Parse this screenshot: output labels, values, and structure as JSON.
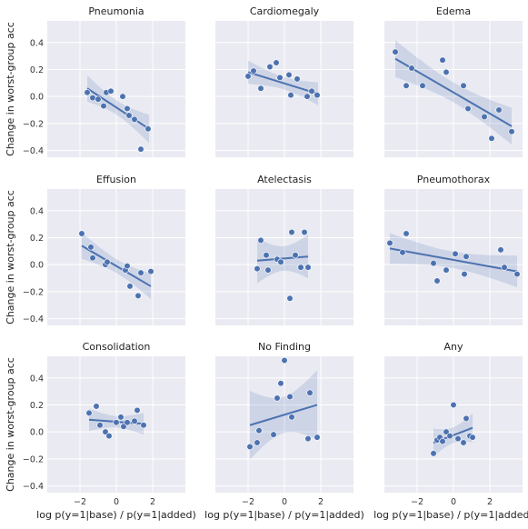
{
  "chart_data": {
    "type": "scatter",
    "xlim": [
      -3.8,
      3.8
    ],
    "ylim": [
      -0.45,
      0.56
    ],
    "xticks": [
      -2,
      0,
      2
    ],
    "yticks": [
      -0.4,
      -0.2,
      0.0,
      0.2,
      0.4
    ],
    "xtick_labels": [
      "−2",
      "0",
      "2"
    ],
    "ytick_labels": [
      "−0.4",
      "−0.2",
      "0.0",
      "0.2",
      "0.4"
    ],
    "xlabel": "log p(y=1|base) / p(y=1|added)",
    "ylabel": "Change in worst-group acc",
    "point_color": "#4c72b0",
    "line_color": "#4c72b0",
    "band_color": "#4c72b0",
    "panel_bg": "#eaeaf2",
    "grid_color": "#ffffff",
    "panels": [
      {
        "title": "Pneumonia",
        "x": [
          -1.6,
          -1.3,
          -1.0,
          -0.7,
          -0.55,
          -0.3,
          0.35,
          0.6,
          0.7,
          1.0,
          1.35,
          1.75
        ],
        "y": [
          0.03,
          -0.01,
          -0.02,
          -0.07,
          0.03,
          0.04,
          0.0,
          -0.09,
          -0.14,
          -0.17,
          -0.39,
          -0.24
        ],
        "fit": [
          [
            -1.6,
            0.06
          ],
          [
            1.8,
            -0.24
          ]
        ]
      },
      {
        "title": "Cardiomegaly",
        "x": [
          -2.0,
          -1.7,
          -1.3,
          -0.8,
          -0.45,
          -0.25,
          0.25,
          0.35,
          0.7,
          1.25,
          1.5,
          1.8
        ],
        "y": [
          0.15,
          0.19,
          0.06,
          0.22,
          0.25,
          0.14,
          0.16,
          0.01,
          0.13,
          0.0,
          0.04,
          0.01
        ],
        "fit": [
          [
            -2.0,
            0.18
          ],
          [
            1.85,
            0.02
          ]
        ]
      },
      {
        "title": "Edema",
        "x": [
          -3.2,
          -2.6,
          -2.3,
          -1.7,
          -0.6,
          -0.4,
          0.55,
          0.8,
          1.7,
          2.1,
          2.5,
          3.2
        ],
        "y": [
          0.33,
          0.08,
          0.21,
          0.08,
          0.27,
          0.18,
          0.08,
          -0.09,
          -0.15,
          -0.31,
          -0.1,
          -0.26
        ],
        "fit": [
          [
            -3.2,
            0.28
          ],
          [
            3.2,
            -0.22
          ]
        ]
      },
      {
        "title": "Effusion",
        "x": [
          -1.9,
          -1.4,
          -1.3,
          -0.6,
          -0.5,
          0.5,
          0.6,
          0.75,
          1.2,
          1.35,
          1.9
        ],
        "y": [
          0.23,
          0.13,
          0.05,
          0.0,
          0.02,
          -0.04,
          -0.01,
          -0.16,
          -0.23,
          -0.06,
          -0.05
        ],
        "fit": [
          [
            -1.9,
            0.14
          ],
          [
            1.9,
            -0.16
          ]
        ]
      },
      {
        "title": "Atelectasis",
        "x": [
          -1.5,
          -1.3,
          -1.0,
          -0.9,
          -0.4,
          -0.2,
          0.3,
          0.4,
          0.6,
          0.9,
          1.1,
          1.3
        ],
        "y": [
          -0.03,
          0.18,
          0.07,
          -0.04,
          0.04,
          0.02,
          -0.25,
          0.24,
          0.07,
          -0.02,
          0.24,
          -0.02
        ],
        "fit": [
          [
            -1.5,
            0.03
          ],
          [
            1.3,
            0.06
          ]
        ]
      },
      {
        "title": "Pneumothorax",
        "x": [
          -3.5,
          -2.8,
          -2.6,
          -1.1,
          -0.9,
          -0.4,
          0.1,
          0.6,
          0.7,
          2.6,
          2.8,
          3.5
        ],
        "y": [
          0.16,
          0.09,
          0.23,
          0.01,
          -0.12,
          -0.04,
          0.08,
          -0.07,
          0.06,
          0.11,
          -0.02,
          -0.07
        ],
        "fit": [
          [
            -3.5,
            0.12
          ],
          [
            3.5,
            -0.05
          ]
        ]
      },
      {
        "title": "Consolidation",
        "x": [
          -1.5,
          -1.1,
          -0.9,
          -0.6,
          -0.4,
          0.0,
          0.25,
          0.4,
          0.6,
          1.0,
          1.15,
          1.5
        ],
        "y": [
          0.14,
          0.19,
          0.05,
          0.0,
          -0.03,
          0.07,
          0.11,
          0.04,
          0.07,
          0.08,
          0.16,
          0.05
        ],
        "fit": [
          [
            -1.5,
            0.09
          ],
          [
            1.5,
            0.06
          ]
        ]
      },
      {
        "title": "No Finding",
        "x": [
          -1.9,
          -1.5,
          -1.4,
          -0.6,
          -0.4,
          -0.2,
          0.0,
          0.3,
          0.4,
          1.3,
          1.4,
          1.8
        ],
        "y": [
          -0.11,
          -0.08,
          0.01,
          -0.02,
          0.25,
          0.36,
          0.53,
          0.26,
          0.11,
          -0.05,
          0.29,
          -0.04
        ],
        "fit": [
          [
            -1.9,
            0.05
          ],
          [
            1.8,
            0.2
          ]
        ]
      },
      {
        "title": "Any",
        "x": [
          -1.1,
          -0.9,
          -0.75,
          -0.6,
          -0.4,
          -0.2,
          0.0,
          0.25,
          0.55,
          0.7,
          0.9,
          1.05
        ],
        "y": [
          -0.16,
          -0.06,
          -0.04,
          -0.07,
          0.0,
          -0.03,
          0.2,
          -0.05,
          -0.08,
          0.1,
          -0.03,
          -0.04
        ],
        "fit": [
          [
            -1.1,
            -0.08
          ],
          [
            1.05,
            0.03
          ]
        ]
      }
    ]
  }
}
